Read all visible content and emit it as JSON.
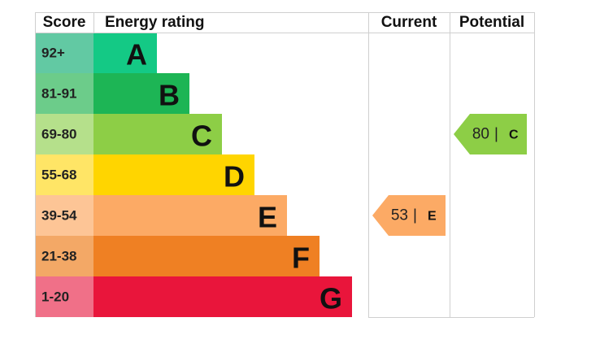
{
  "headers": {
    "score": "Score",
    "rating": "Energy rating",
    "current": "Current",
    "potential": "Potential"
  },
  "bands": [
    {
      "score": "92+",
      "letter": "A",
      "color": "#14c985",
      "score_color": "#62c9a3"
    },
    {
      "score": "81-91",
      "letter": "B",
      "color": "#1db555",
      "score_color": "#6ccc8a"
    },
    {
      "score": "69-80",
      "letter": "C",
      "color": "#8dce46",
      "score_color": "#b5e08b"
    },
    {
      "score": "55-68",
      "letter": "D",
      "color": "#ffd500",
      "score_color": "#ffe566"
    },
    {
      "score": "39-54",
      "letter": "E",
      "color": "#fcaa65",
      "score_color": "#fdc596"
    },
    {
      "score": "21-38",
      "letter": "F",
      "color": "#ef8023",
      "score_color": "#f3a866"
    },
    {
      "score": "1-20",
      "letter": "G",
      "color": "#e9153b",
      "score_color": "#f07088"
    }
  ],
  "current": {
    "value": 53,
    "separator": "|",
    "letter": "E"
  },
  "potential": {
    "value": 80,
    "separator": "|",
    "letter": "C"
  }
}
